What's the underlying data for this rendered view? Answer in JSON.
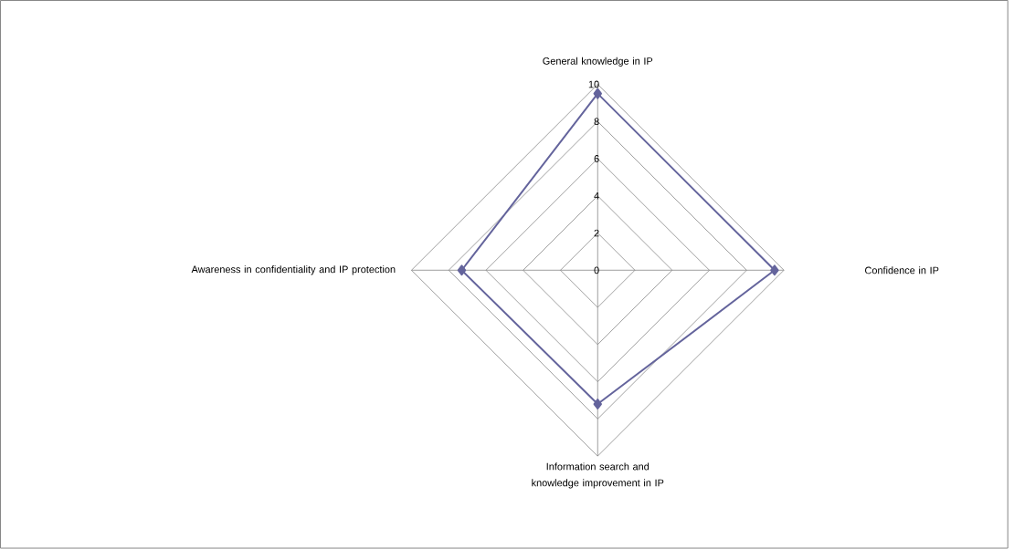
{
  "chart_data": {
    "type": "radar",
    "categories": [
      "General knowledge in IP",
      "Confidence in IP",
      "Information search and knowledge improvement in IP",
      "Awareness in confidentiality and IP protection"
    ],
    "series": [
      {
        "color": "#64649c",
        "values": [
          9.5,
          9.5,
          7.2,
          7.3
        ]
      }
    ],
    "ylim": [
      0,
      10
    ],
    "yticks": [
      0,
      2,
      4,
      6,
      8,
      10
    ],
    "grid": true,
    "marker": "diamond"
  }
}
